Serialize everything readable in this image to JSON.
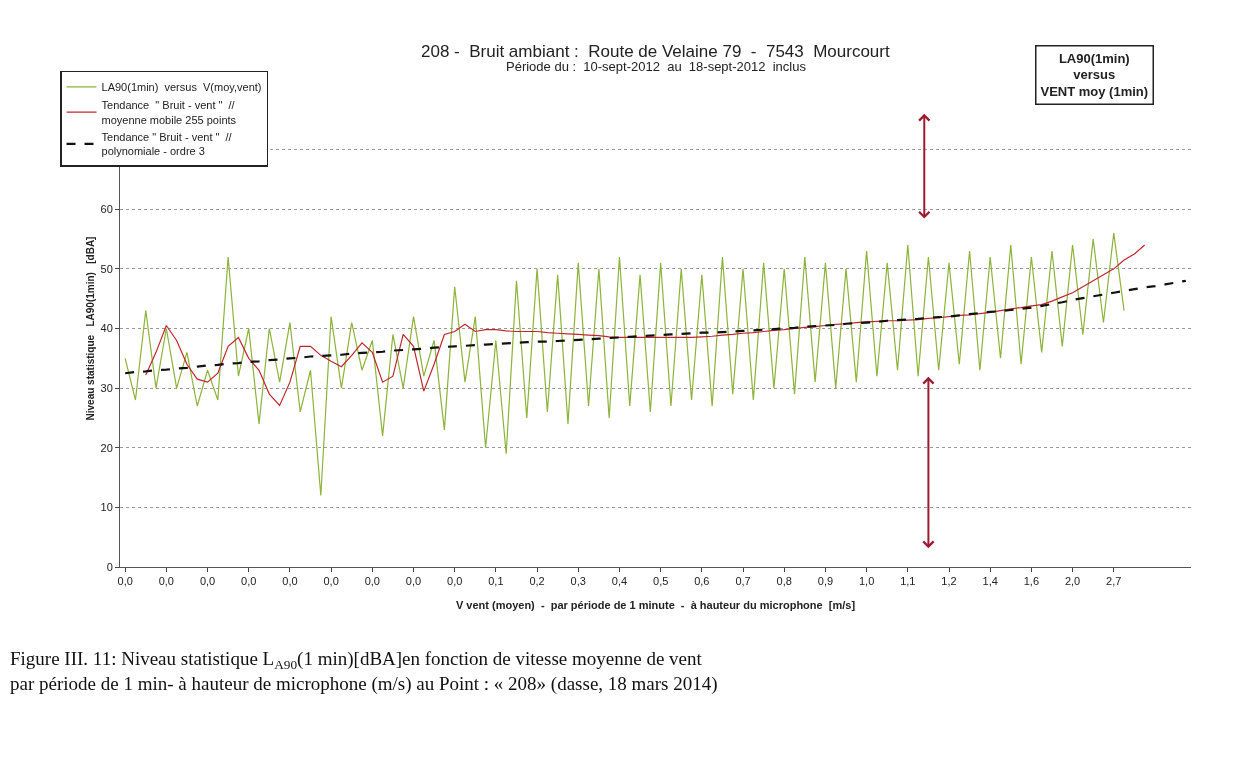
{
  "chart_data": {
    "type": "line",
    "title": "208 -  Bruit ambiant :  Route de Velaine 79  -  7543  Mourcourt",
    "subtitle": "Période du :  10-sept-2012  au  18-sept-2012  inclus",
    "xlabel": "V vent (moyen)  -  par période de 1 minute  -  à hauteur du microphone  [m/s]",
    "ylabel": "Niveau statistique   LA90(1min)   [dBA]",
    "annotations": [
      "LA90(1min)\nversus\nVENT moy (1min)",
      "Figure III. 11: Niveau statistique L$_{A90}$(1 min)[dBA]en fonction de vitesse moyenne de vent\npar période de 1 min- à hauteur de microphone (m/s) au Point : « 208» (dasse, 18 mars 2014)"
    ],
    "categories": [
      "0,0",
      null,
      null,
      null,
      "0,0",
      null,
      null,
      null,
      "0,0",
      null,
      null,
      null,
      "0,0",
      null,
      null,
      null,
      "0,0",
      null,
      null,
      null,
      "0,0",
      null,
      null,
      null,
      "0,0",
      null,
      null,
      null,
      "0,0",
      null,
      null,
      null,
      "0,0",
      null,
      null,
      null,
      "0,1",
      null,
      null,
      null,
      "0,2",
      null,
      null,
      null,
      "0,3",
      null,
      null,
      null,
      "0,4",
      null,
      null,
      null,
      "0,5",
      null,
      null,
      null,
      "0,6",
      null,
      null,
      null,
      "0,7",
      null,
      null,
      null,
      "0,8",
      null,
      null,
      null,
      "0,9",
      null,
      null,
      null,
      "1,0",
      null,
      null,
      null,
      "1,1",
      null,
      null,
      null,
      "1,2",
      null,
      null,
      null,
      "1,4",
      null,
      null,
      null,
      "1,6",
      null,
      null,
      null,
      "2,0",
      null,
      null,
      null,
      "2,7",
      null,
      null,
      null,
      null,
      null,
      null,
      null
    ],
    "ylim": [
      0,
      80
    ],
    "yticks": [
      0,
      10,
      20,
      30,
      40,
      50,
      60,
      {
        "value": 70,
        "label": null
      },
      {
        "value": 80,
        "label": null
      }
    ],
    "grid": "y",
    "legend": "top left",
    "series": [
      {
        "name": "LA90(1min)  versus  V(moy,vent)",
        "color": "#8db33a",
        "line_style": "solid",
        "values": [
          35,
          28,
          43,
          30,
          40,
          30,
          36,
          27,
          33,
          28,
          52,
          32,
          40,
          24,
          40,
          31,
          41,
          26,
          33,
          12,
          42,
          30,
          41,
          33,
          38,
          22,
          39,
          30,
          42,
          32,
          38,
          23,
          47,
          31,
          42,
          20,
          38,
          19,
          48,
          25,
          50,
          26,
          49,
          24,
          51,
          27,
          50,
          25,
          52,
          27,
          49,
          26,
          51,
          27,
          50,
          28,
          49,
          27,
          52,
          29,
          50,
          28,
          51,
          30,
          50,
          29,
          52,
          31,
          51,
          30,
          50,
          31,
          53,
          32,
          51,
          33,
          54,
          32,
          52,
          33,
          51,
          34,
          53,
          33,
          52,
          35,
          54,
          34,
          52,
          36,
          53,
          37,
          54,
          39,
          55,
          41,
          56,
          43,
          null,
          null,
          null,
          null,
          null,
          null
        ]
      },
      {
        "name": "Tendance  \" Bruit - vent \"  //\nmoyenne mobile 255 points",
        "color": "#c0272d",
        "line_style": "solid",
        "values": [
          null,
          null,
          32.2,
          36,
          40.5,
          38,
          34,
          31.5,
          31,
          32.5,
          37,
          38.5,
          35,
          33,
          29,
          27.1,
          31,
          37,
          37,
          35.5,
          34.5,
          33.6,
          35.5,
          37.6,
          36,
          31,
          32,
          39,
          37,
          29.5,
          34,
          39,
          39.5,
          40.7,
          39.5,
          39.8,
          39.8,
          39.6,
          39.5,
          39.5,
          39.5,
          39.3,
          39.2,
          39.1,
          39,
          38.9,
          38.8,
          38.6,
          38.5,
          38.5,
          38.5,
          38.5,
          38.5,
          38.5,
          38.5,
          38.5,
          38.6,
          38.7,
          38.9,
          39,
          39.2,
          39.3,
          39.5,
          39.7,
          39.8,
          40,
          40.2,
          40.3,
          40.5,
          40.7,
          40.8,
          41,
          41.1,
          41.2,
          41.3,
          41.3,
          41.4,
          41.5,
          41.7,
          41.8,
          42,
          42.2,
          42.3,
          42.5,
          42.7,
          43,
          43.3,
          43.5,
          43.8,
          44,
          44.6,
          45.3,
          46,
          47,
          48,
          49,
          50,
          51.5,
          52.5,
          54,
          null,
          null,
          null,
          null
        ]
      },
      {
        "name": "Tendance \" Bruit - vent \"  //\npolynomiale - ordre 3",
        "color": "#111111",
        "line_style": "dashed",
        "values": [
          32.5,
          32.7,
          32.8,
          33,
          33.1,
          33.3,
          33.4,
          33.6,
          33.8,
          33.9,
          34.1,
          34.2,
          34.4,
          34.5,
          34.7,
          34.8,
          35,
          35.1,
          35.3,
          35.4,
          35.5,
          35.6,
          35.8,
          35.9,
          36,
          36.1,
          36.3,
          36.4,
          36.5,
          36.6,
          36.8,
          36.9,
          37,
          37.1,
          37.2,
          37.3,
          37.4,
          37.5,
          37.6,
          37.7,
          37.8,
          37.8,
          37.9,
          38,
          38.1,
          38.2,
          38.3,
          38.4,
          38.5,
          38.6,
          38.7,
          38.8,
          38.9,
          39,
          39.1,
          39.2,
          39.3,
          39.3,
          39.4,
          39.5,
          39.6,
          39.7,
          39.8,
          39.9,
          40,
          40.1,
          40.3,
          40.4,
          40.5,
          40.6,
          40.8,
          40.9,
          41,
          41.1,
          41.3,
          41.4,
          41.5,
          41.6,
          41.8,
          41.9,
          42,
          42.2,
          42.4,
          42.6,
          42.8,
          42.9,
          43.1,
          43.3,
          43.5,
          43.8,
          44.1,
          44.4,
          44.8,
          45.1,
          45.4,
          45.7,
          46,
          46.3,
          46.6,
          46.9,
          47.1,
          47.4,
          47.7,
          48
        ]
      }
    ]
  }
}
